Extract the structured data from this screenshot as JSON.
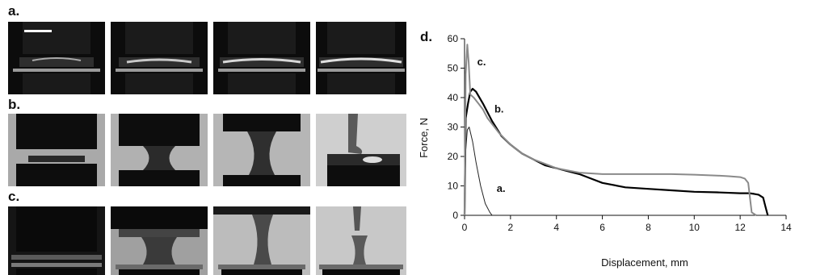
{
  "figure": {
    "panel_a": "a.",
    "panel_b": "b.",
    "panel_c": "c.",
    "panel_d": "d."
  },
  "colors": {
    "ink": "#111111",
    "gray_curve": "#8a8a8a"
  },
  "chart_data": {
    "type": "line",
    "title": "",
    "xlabel": "Displacement, mm",
    "ylabel": "Force, N",
    "xlim": [
      0,
      14
    ],
    "ylim": [
      0,
      60
    ],
    "xticks": [
      0,
      2,
      4,
      6,
      8,
      10,
      12,
      14
    ],
    "yticks": [
      0,
      10,
      20,
      30,
      40,
      50,
      60
    ],
    "grid": false,
    "series": [
      {
        "name": "a.",
        "color": "#222222",
        "x": [
          0,
          0.05,
          0.12,
          0.2,
          0.35,
          0.5,
          0.7,
          0.9,
          1.1,
          1.2
        ],
        "y": [
          0,
          22,
          29,
          30,
          25,
          18,
          10,
          4,
          1,
          0
        ]
      },
      {
        "name": "b.",
        "color": "#000000",
        "x": [
          0,
          0.05,
          0.15,
          0.25,
          0.35,
          0.5,
          0.8,
          1.2,
          1.6,
          2.0,
          2.5,
          3.0,
          3.5,
          4.0,
          4.5,
          5.0,
          5.5,
          6.0,
          7.0,
          8.0,
          9.0,
          10.0,
          11.0,
          12.0,
          12.4,
          12.6,
          12.8,
          13.0,
          13.1,
          13.2
        ],
        "y": [
          0,
          33,
          38,
          42,
          43,
          42,
          38,
          32,
          27,
          24,
          21,
          19,
          17,
          16,
          15,
          14,
          12.5,
          11,
          9.5,
          9,
          8.5,
          8,
          7.8,
          7.5,
          7.5,
          7.3,
          7,
          6,
          3,
          0
        ]
      },
      {
        "name": "c.",
        "color": "#8a8a8a",
        "x": [
          0,
          0.05,
          0.12,
          0.18,
          0.25,
          0.4,
          0.6,
          0.8,
          1.0,
          1.5,
          2.0,
          2.5,
          3.0,
          3.5,
          4.0,
          5.0,
          6.0,
          7.0,
          8.0,
          9.0,
          10.0,
          11.0,
          11.5,
          12.0,
          12.2,
          12.35,
          12.5,
          12.7
        ],
        "y": [
          0,
          48,
          58,
          52,
          41,
          40,
          38,
          36,
          33,
          28,
          24,
          21,
          19,
          17.5,
          16,
          14.5,
          14,
          14,
          14,
          14,
          13.8,
          13.5,
          13.3,
          13,
          12.5,
          11,
          1,
          0
        ]
      }
    ],
    "annotations": [
      {
        "text": "a.",
        "x": 1.4,
        "y": 8
      },
      {
        "text": "b.",
        "x": 1.3,
        "y": 35
      },
      {
        "text": "c.",
        "x": 0.55,
        "y": 51
      }
    ]
  }
}
